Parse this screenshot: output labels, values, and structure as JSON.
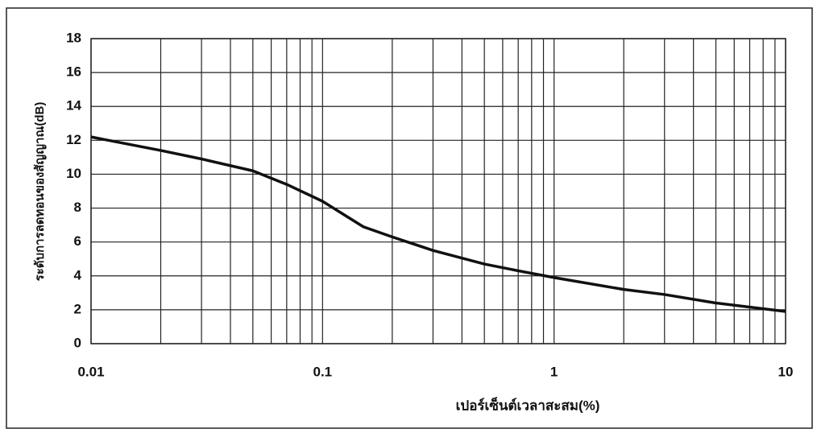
{
  "chart_data": {
    "type": "line",
    "ylabel": "ระดับการลดทอนของสัญญาณ(dB)",
    "xlabel": "เปอร์เซ็นต์เวลาสะสม(%)",
    "x": [
      0.01,
      0.02,
      0.03,
      0.05,
      0.07,
      0.1,
      0.15,
      0.2,
      0.3,
      0.5,
      0.7,
      1,
      2,
      3,
      5,
      10
    ],
    "series": [
      {
        "color": "#111111",
        "values": [
          12.2,
          11.4,
          10.9,
          10.2,
          9.4,
          8.4,
          6.9,
          6.3,
          5.5,
          4.7,
          4.3,
          3.9,
          3.2,
          2.9,
          2.4,
          1.9
        ]
      }
    ],
    "xscale": "log",
    "xlim": [
      0.01,
      10
    ],
    "xticks": [
      0.01,
      0.1,
      1,
      10
    ],
    "x_minor_ticks": [
      0.02,
      0.03,
      0.04,
      0.05,
      0.06,
      0.07,
      0.08,
      0.09,
      0.2,
      0.3,
      0.4,
      0.5,
      0.6,
      0.7,
      0.8,
      0.9,
      2,
      3,
      4,
      5,
      6,
      7,
      8,
      9
    ],
    "ylim": [
      0,
      18
    ],
    "yticks": [
      0,
      2,
      4,
      6,
      8,
      10,
      12,
      14,
      16,
      18
    ],
    "grid": true
  }
}
